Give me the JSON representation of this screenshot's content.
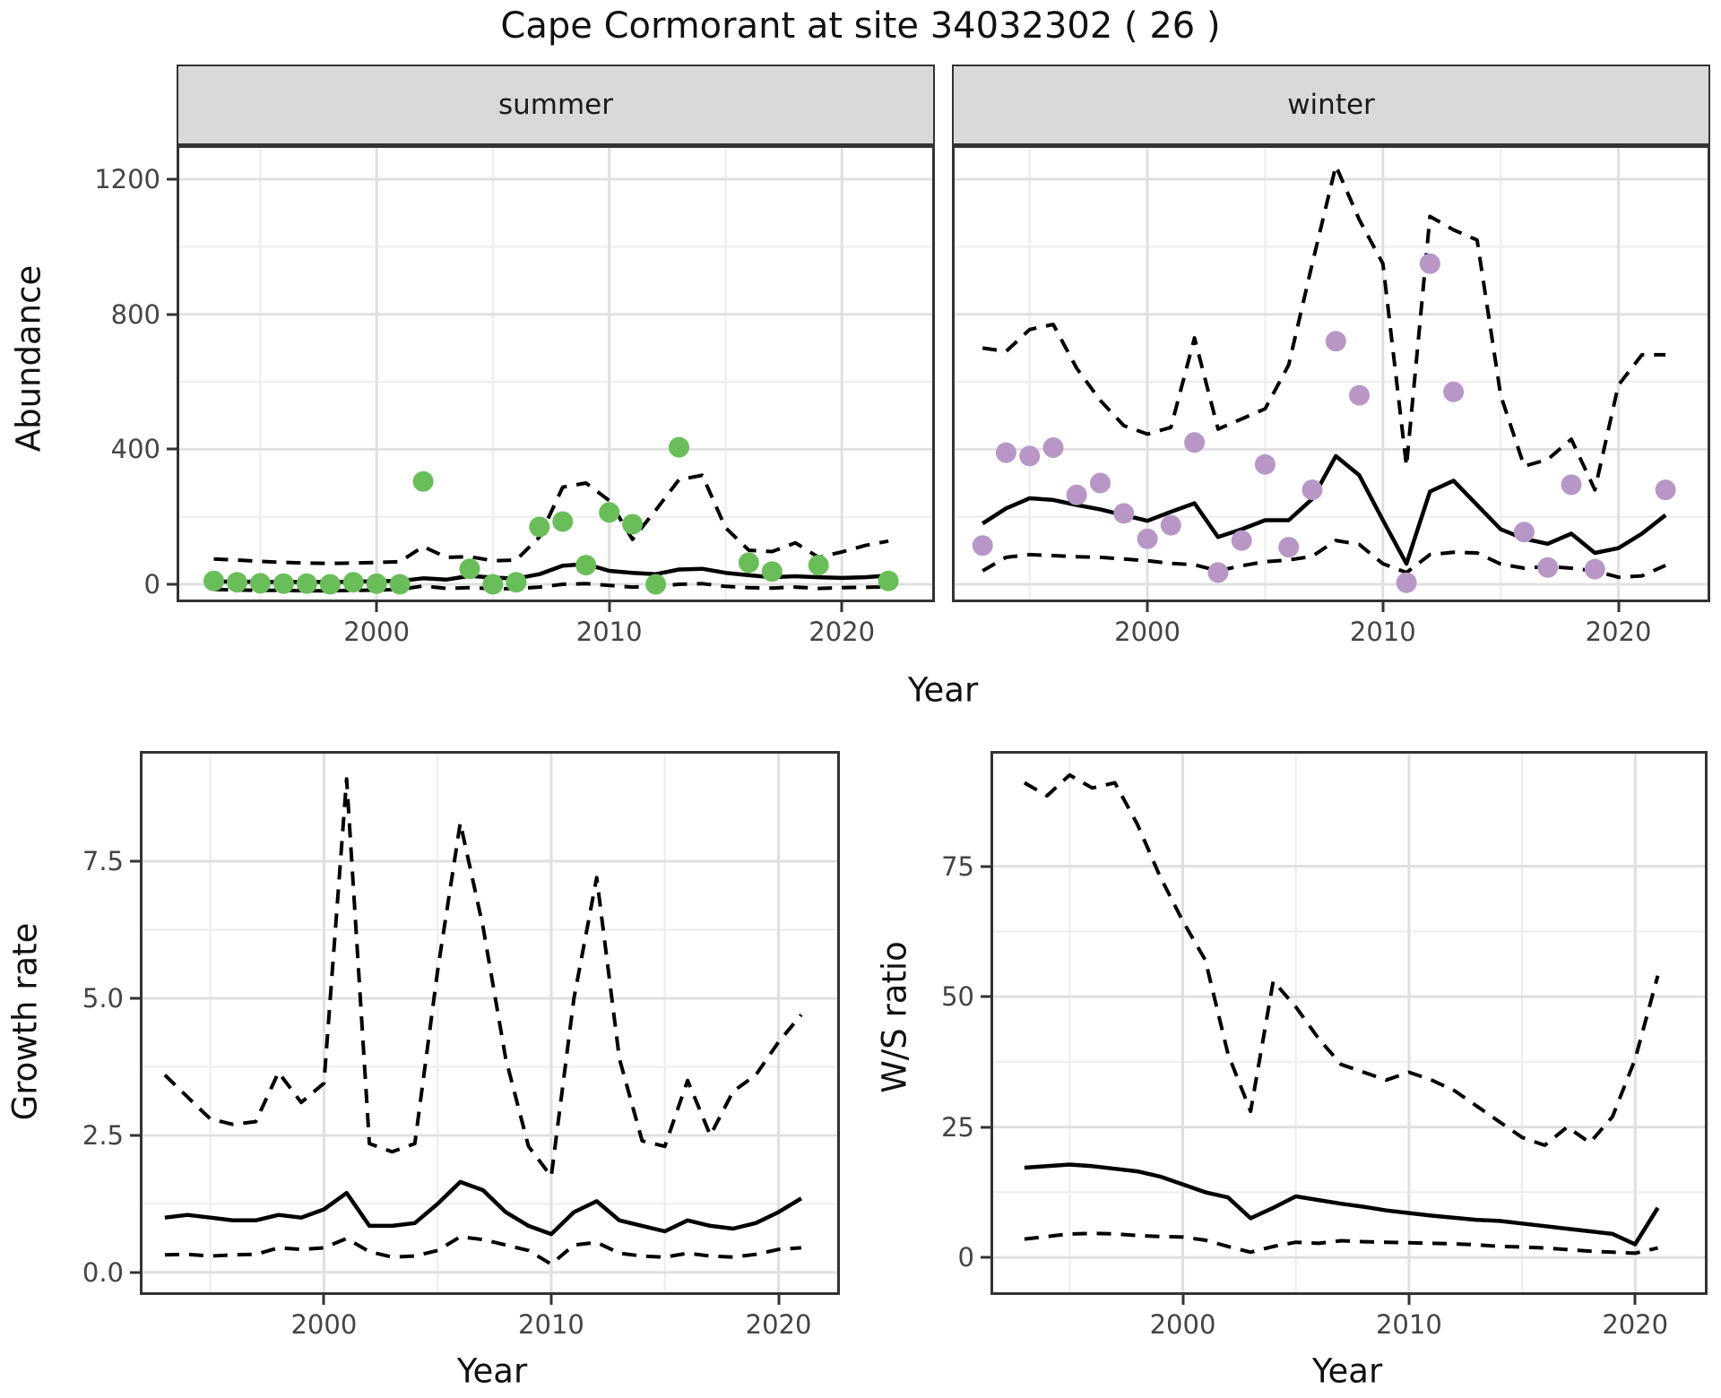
{
  "title": "Cape Cormorant at site 34032302 ( 26 )",
  "colors": {
    "background": "#FFFFFF",
    "panel_border": "#333333",
    "strip_bg": "#D9D9D9",
    "grid_major": "#E0E0E0",
    "grid_minor": "#EDEDED",
    "line": "#000000",
    "summer_point": "#6ABE5A",
    "winter_point": "#B897C7",
    "tick_text": "#444444"
  },
  "chart_data": [
    {
      "type": "scatter",
      "facet_label": "summer",
      "ylabel": "Abundance",
      "xlabel": "Year",
      "xlim": [
        1991.4,
        2024.0
      ],
      "ylim": [
        -53,
        1301
      ],
      "xticks": [
        2000,
        2010,
        2020
      ],
      "xtick_labels": [
        "2000",
        "2010",
        "2020"
      ],
      "xminor": [
        1995,
        2005,
        2015
      ],
      "yticks": [
        0,
        400,
        800,
        1200
      ],
      "ytick_labels": [
        "0",
        "400",
        "800",
        "1200"
      ],
      "yminor": [
        200,
        600,
        1000
      ],
      "show_y_ticks": true,
      "point_color_key": "summer_point",
      "years": [
        1993,
        1994,
        1995,
        1996,
        1997,
        1998,
        1999,
        2000,
        2001,
        2002,
        2003,
        2004,
        2005,
        2006,
        2007,
        2008,
        2009,
        2010,
        2011,
        2012,
        2013,
        2014,
        2015,
        2016,
        2017,
        2018,
        2019,
        2020,
        2021,
        2022
      ],
      "mean": [
        8,
        8,
        7,
        7,
        7,
        7,
        8,
        9,
        10,
        18,
        14,
        25,
        20,
        17,
        30,
        55,
        60,
        40,
        34,
        30,
        44,
        46,
        34,
        27,
        21,
        24,
        21,
        19,
        21,
        26
      ],
      "upper_ci": [
        75,
        72,
        68,
        65,
        63,
        62,
        63,
        65,
        67,
        112,
        80,
        82,
        70,
        72,
        140,
        288,
        300,
        248,
        133,
        220,
        310,
        323,
        168,
        101,
        97,
        123,
        80,
        96,
        115,
        128
      ],
      "lower_ci": [
        -15,
        -17,
        -18,
        -18,
        -19,
        -19,
        -18,
        -17,
        -15,
        -5,
        -12,
        -10,
        -13,
        -13,
        -8,
        0,
        2,
        -3,
        -8,
        -6,
        0,
        2,
        -6,
        -10,
        -11,
        -8,
        -12,
        -10,
        -9,
        -7
      ],
      "points": [
        [
          1993,
          10
        ],
        [
          1994,
          6
        ],
        [
          1995,
          3
        ],
        [
          1996,
          2
        ],
        [
          1997,
          2
        ],
        [
          1998,
          0
        ],
        [
          1999,
          6
        ],
        [
          2000,
          2
        ],
        [
          2001,
          0
        ],
        [
          2002,
          305
        ],
        [
          2004,
          46
        ],
        [
          2005,
          0
        ],
        [
          2006,
          6
        ],
        [
          2007,
          170
        ],
        [
          2008,
          186
        ],
        [
          2009,
          57
        ],
        [
          2010,
          213
        ],
        [
          2011,
          178
        ],
        [
          2012,
          0
        ],
        [
          2013,
          406
        ],
        [
          2016,
          64
        ],
        [
          2017,
          38
        ],
        [
          2019,
          57
        ],
        [
          2022,
          10
        ]
      ]
    },
    {
      "type": "scatter",
      "facet_label": "winter",
      "ylabel": "Abundance",
      "xlabel": "Year",
      "xlim": [
        1991.7,
        2023.9
      ],
      "ylim": [
        -53,
        1301
      ],
      "xticks": [
        2000,
        2010,
        2020
      ],
      "xtick_labels": [
        "2000",
        "2010",
        "2020"
      ],
      "xminor": [
        1995,
        2005,
        2015
      ],
      "yticks": [
        0,
        400,
        800,
        1200
      ],
      "ytick_labels": [
        "0",
        "400",
        "800",
        "1200"
      ],
      "yminor": [
        200,
        600,
        1000
      ],
      "show_y_ticks": false,
      "point_color_key": "winter_point",
      "years": [
        1993,
        1994,
        1995,
        1996,
        1997,
        1998,
        1999,
        2000,
        2001,
        2002,
        2003,
        2004,
        2005,
        2006,
        2007,
        2008,
        2009,
        2010,
        2011,
        2012,
        2013,
        2014,
        2015,
        2016,
        2017,
        2018,
        2019,
        2020,
        2021,
        2022
      ],
      "mean": [
        180,
        225,
        255,
        250,
        235,
        222,
        205,
        188,
        215,
        240,
        140,
        163,
        190,
        190,
        253,
        380,
        323,
        190,
        61,
        275,
        307,
        235,
        163,
        135,
        120,
        150,
        93,
        107,
        150,
        205
      ],
      "upper_ci": [
        700,
        690,
        755,
        770,
        640,
        545,
        470,
        445,
        465,
        730,
        460,
        490,
        520,
        650,
        950,
        1240,
        1080,
        950,
        350,
        1090,
        1050,
        1020,
        560,
        350,
        370,
        430,
        280,
        590,
        680,
        680
      ],
      "lower_ci": [
        40,
        80,
        88,
        85,
        82,
        80,
        75,
        70,
        62,
        58,
        40,
        55,
        67,
        72,
        83,
        130,
        118,
        61,
        35,
        88,
        95,
        93,
        60,
        48,
        53,
        48,
        40,
        21,
        25,
        56
      ],
      "points": [
        [
          1993,
          115
        ],
        [
          1994,
          390
        ],
        [
          1995,
          380
        ],
        [
          1996,
          405
        ],
        [
          1997,
          265
        ],
        [
          1998,
          300
        ],
        [
          1999,
          210
        ],
        [
          2000,
          135
        ],
        [
          2001,
          175
        ],
        [
          2002,
          420
        ],
        [
          2003,
          35
        ],
        [
          2004,
          130
        ],
        [
          2005,
          355
        ],
        [
          2006,
          110
        ],
        [
          2007,
          280
        ],
        [
          2008,
          720
        ],
        [
          2009,
          560
        ],
        [
          2011,
          5
        ],
        [
          2012,
          950
        ],
        [
          2013,
          570
        ],
        [
          2016,
          155
        ],
        [
          2017,
          50
        ],
        [
          2018,
          295
        ],
        [
          2019,
          45
        ],
        [
          2022,
          280
        ]
      ]
    },
    {
      "type": "line",
      "facet_label": "",
      "ylabel": "Growth rate",
      "xlabel": "Year",
      "xlim": [
        1991.9,
        2022.7
      ],
      "ylim": [
        -0.41,
        9.51
      ],
      "xticks": [
        2000,
        2010,
        2020
      ],
      "xtick_labels": [
        "2000",
        "2010",
        "2020"
      ],
      "xminor": [
        1995,
        2005,
        2015
      ],
      "yticks": [
        0,
        2.5,
        5,
        7.5
      ],
      "ytick_labels": [
        "0.0",
        "2.5",
        "5.0",
        "7.5"
      ],
      "yminor": [
        1.25,
        3.75,
        6.25
      ],
      "show_y_ticks": true,
      "point_color_key": "summer_point",
      "years": [
        1993,
        1994,
        1995,
        1996,
        1997,
        1998,
        1999,
        2000,
        2001,
        2002,
        2003,
        2004,
        2005,
        2006,
        2007,
        2008,
        2009,
        2010,
        2011,
        2012,
        2013,
        2014,
        2015,
        2016,
        2017,
        2018,
        2019,
        2020,
        2021
      ],
      "mean": [
        1.0,
        1.05,
        1.0,
        0.95,
        0.95,
        1.05,
        1.0,
        1.15,
        1.45,
        0.85,
        0.85,
        0.9,
        1.25,
        1.65,
        1.5,
        1.1,
        0.85,
        0.7,
        1.1,
        1.3,
        0.95,
        0.85,
        0.75,
        0.95,
        0.85,
        0.8,
        0.9,
        1.1,
        1.35
      ],
      "upper_ci": [
        3.6,
        3.2,
        2.8,
        2.7,
        2.75,
        3.65,
        3.1,
        3.45,
        9.0,
        2.35,
        2.2,
        2.35,
        5.5,
        8.2,
        6.3,
        3.9,
        2.3,
        1.75,
        5.0,
        7.2,
        3.9,
        2.4,
        2.3,
        3.5,
        2.5,
        3.3,
        3.6,
        4.2,
        4.7
      ],
      "lower_ci": [
        0.32,
        0.33,
        0.3,
        0.32,
        0.33,
        0.45,
        0.42,
        0.45,
        0.62,
        0.38,
        0.28,
        0.3,
        0.4,
        0.65,
        0.6,
        0.5,
        0.4,
        0.15,
        0.5,
        0.55,
        0.35,
        0.3,
        0.28,
        0.35,
        0.3,
        0.28,
        0.33,
        0.42,
        0.45
      ],
      "points": []
    },
    {
      "type": "line",
      "facet_label": "",
      "ylabel": "W/S ratio",
      "xlabel": "Year",
      "xlim": [
        1991.5,
        2023.2
      ],
      "ylim": [
        -7.2,
        97.1
      ],
      "xticks": [
        2000,
        2010,
        2020
      ],
      "xtick_labels": [
        "2000",
        "2010",
        "2020"
      ],
      "xminor": [
        1995,
        2005,
        2015
      ],
      "yticks": [
        0,
        25,
        50,
        75
      ],
      "ytick_labels": [
        "0",
        "25",
        "50",
        "75"
      ],
      "yminor": [
        12.5,
        37.5,
        62.5
      ],
      "show_y_ticks": true,
      "point_color_key": "winter_point",
      "years": [
        1993,
        1994,
        1995,
        1996,
        1997,
        1998,
        1999,
        2000,
        2001,
        2002,
        2003,
        2004,
        2005,
        2006,
        2007,
        2008,
        2009,
        2010,
        2011,
        2012,
        2013,
        2014,
        2015,
        2016,
        2017,
        2018,
        2019,
        2020,
        2021
      ],
      "mean": [
        17.2,
        17.5,
        17.8,
        17.5,
        17,
        16.5,
        15.5,
        14,
        12.5,
        11.5,
        7.5,
        9.5,
        11.7,
        11,
        10.3,
        9.7,
        9,
        8.5,
        8,
        7.6,
        7.2,
        7,
        6.5,
        6,
        5.5,
        5,
        4.5,
        2.5,
        9.5
      ],
      "upper_ci": [
        91,
        88.5,
        92.5,
        90,
        91,
        83,
        73,
        64.5,
        57,
        39,
        28,
        53,
        48,
        42,
        37,
        35.5,
        34,
        35.5,
        34,
        32,
        29,
        26,
        23,
        21.5,
        25,
        22,
        27,
        38,
        54
      ],
      "lower_ci": [
        3.5,
        4,
        4.5,
        4.6,
        4.5,
        4.2,
        4,
        3.9,
        3.3,
        2.1,
        1.0,
        2.1,
        2.9,
        2.7,
        3.2,
        3.0,
        2.9,
        2.8,
        2.7,
        2.6,
        2.4,
        2.1,
        2.0,
        1.8,
        1.5,
        1.2,
        1.0,
        0.8,
        1.8
      ],
      "points": []
    }
  ]
}
